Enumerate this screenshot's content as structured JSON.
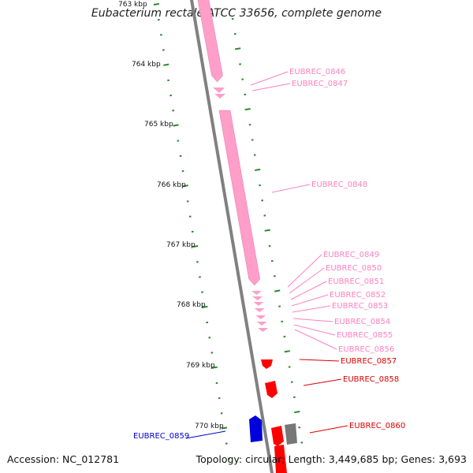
{
  "title": "Eubacterium rectale ATCC 33656, complete genome",
  "accession": "Accession: NC_012781",
  "summary": "Topology: circular; Length: 3,449,685 bp; Genes: 3,693",
  "colors": {
    "pink_gene": "#ff9ec8",
    "red_gene": "#ff0000",
    "blue_gene": "#0000dd",
    "grey_gene": "#777777",
    "backbone": "#808080",
    "tick": "#2a8a2a",
    "pink_label": "#ff7fbf",
    "red_label": "#dd0000",
    "blue_label": "#0000cc"
  },
  "scale_labels": [
    "763 kbp",
    "764 kbp",
    "765 kbp",
    "766 kbp",
    "767 kbp",
    "768 kbp",
    "769 kbp",
    "770 kbp"
  ],
  "gene_labels": [
    {
      "text": "EUBREC_0846",
      "color": "pink"
    },
    {
      "text": "EUBREC_0847",
      "color": "pink"
    },
    {
      "text": "EUBREC_0848",
      "color": "pink"
    },
    {
      "text": "EUBREC_0849",
      "color": "pink"
    },
    {
      "text": "EUBREC_0850",
      "color": "pink"
    },
    {
      "text": "EUBREC_0851",
      "color": "pink"
    },
    {
      "text": "EUBREC_0852",
      "color": "pink"
    },
    {
      "text": "EUBREC_0853",
      "color": "pink"
    },
    {
      "text": "EUBREC_0854",
      "color": "pink"
    },
    {
      "text": "EUBREC_0855",
      "color": "pink"
    },
    {
      "text": "EUBREC_0856",
      "color": "pink"
    },
    {
      "text": "EUBREC_0857",
      "color": "red"
    },
    {
      "text": "EUBREC_0858",
      "color": "red"
    },
    {
      "text": "EUBREC_0860",
      "color": "red"
    },
    {
      "text": "EUBREC_0859",
      "color": "blue"
    }
  ]
}
